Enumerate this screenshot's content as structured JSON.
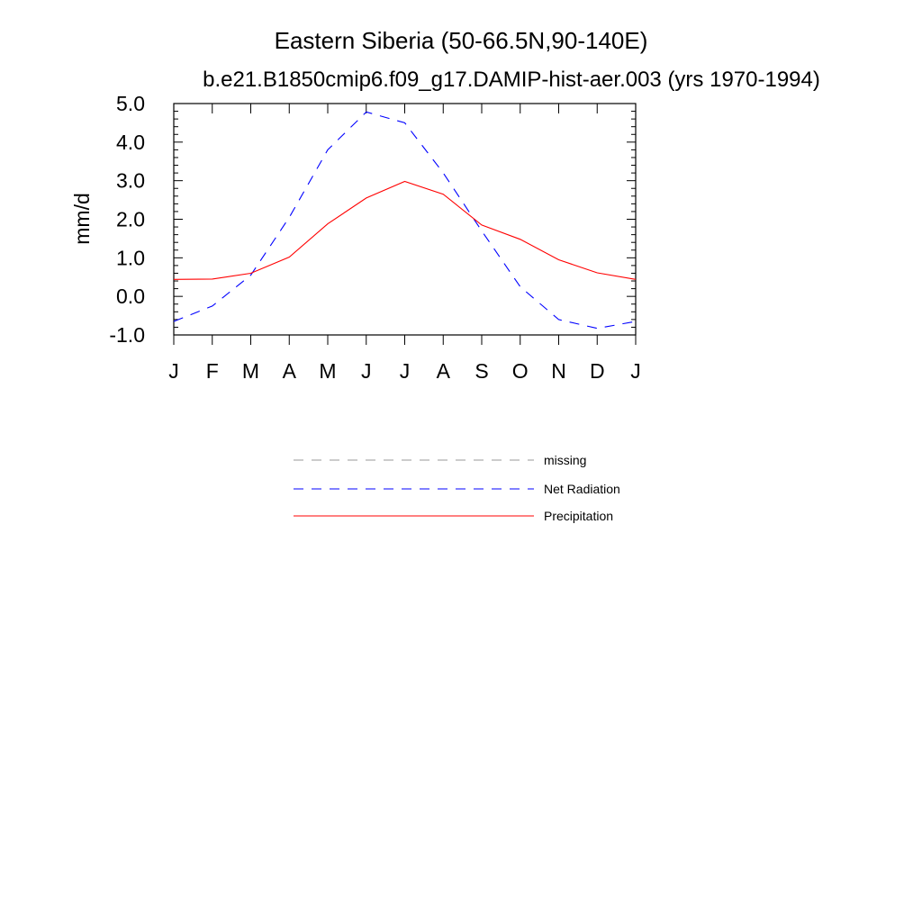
{
  "chart_data": {
    "type": "line",
    "title": "Eastern Siberia (50-66.5N,90-140E)",
    "subtitle": "b.e21.B1850cmip6.f09_g17.DAMIP-hist-aer.003 (yrs 1970-1994)",
    "xlabel": "",
    "ylabel": "mm/d",
    "categories": [
      "J",
      "F",
      "M",
      "A",
      "M",
      "J",
      "J",
      "A",
      "S",
      "O",
      "N",
      "D",
      "J"
    ],
    "ylim": [
      -1.0,
      5.0
    ],
    "yticks": [
      "5.0",
      "4.0",
      "3.0",
      "2.0",
      "1.0",
      "0.0",
      "-1.0"
    ],
    "grid": false,
    "legend_position": "bottom",
    "series": [
      {
        "name": "Net Radiation",
        "color": "#0000ff",
        "dash": "dashed",
        "values": [
          -0.65,
          -0.25,
          0.55,
          2.05,
          3.8,
          4.78,
          4.5,
          3.2,
          1.7,
          0.25,
          -0.6,
          -0.83,
          -0.65
        ]
      },
      {
        "name": "Precipitation",
        "color": "#ff0000",
        "dash": "solid",
        "values": [
          0.44,
          0.45,
          0.6,
          1.02,
          1.88,
          2.55,
          2.98,
          2.65,
          1.85,
          1.48,
          0.95,
          0.61,
          0.44
        ]
      }
    ],
    "legend": [
      {
        "label": "missing",
        "color": "#999999",
        "dash": "dashed"
      },
      {
        "label": "Net Radiation",
        "color": "#0000ff",
        "dash": "dashed"
      },
      {
        "label": "Precipitation",
        "color": "#ff0000",
        "dash": "solid"
      }
    ]
  }
}
